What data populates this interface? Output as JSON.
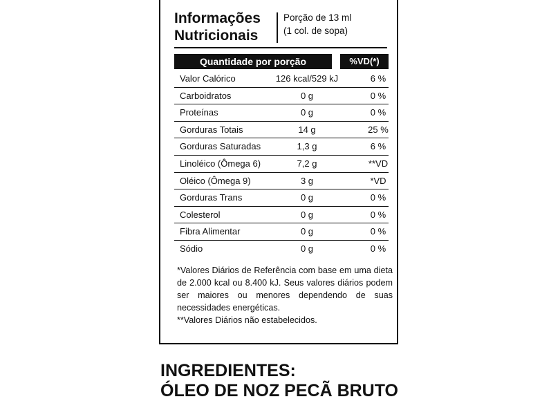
{
  "label": {
    "title_line1": "Informações",
    "title_line2": "Nutricionais",
    "portion_line1": "Porção de 13 ml",
    "portion_line2": "(1 col. de sopa)",
    "header_quantity": "Quantidade por porção",
    "header_vd": "%VD(*)",
    "rows": [
      {
        "name": "Valor Calórico",
        "value": "126 kcal/529 kJ",
        "vd": "6 %"
      },
      {
        "name": "Carboidratos",
        "value": "0 g",
        "vd": "0 %"
      },
      {
        "name": "Proteínas",
        "value": "0 g",
        "vd": "0 %"
      },
      {
        "name": "Gorduras Totais",
        "value": "14 g",
        "vd": "25 %"
      },
      {
        "name": "Gorduras Saturadas",
        "value": "1,3 g",
        "vd": "6 %"
      },
      {
        "name": "Linoléico (Ômega 6)",
        "value": "7,2 g",
        "vd": "**VD"
      },
      {
        "name": "Oléico (Ômega 9)",
        "value": "3 g",
        "vd": "*VD"
      },
      {
        "name": "Gorduras Trans",
        "value": "0 g",
        "vd": "0 %"
      },
      {
        "name": "Colesterol",
        "value": "0 g",
        "vd": "0 %"
      },
      {
        "name": "Fibra Alimentar",
        "value": "0 g",
        "vd": "0 %"
      },
      {
        "name": "Sódio",
        "value": "0 g",
        "vd": "0 %"
      }
    ],
    "footnote1": "*Valores Diários de Referência com base em uma dieta de 2.000 kcal ou 8.400 kJ. Seus valores diários podem ser maiores ou menores dependendo de suas necessidades energéticas.",
    "footnote2": "**Valores Diários não estabelecidos."
  },
  "ingredients": {
    "heading": "INGREDIENTES:",
    "text": "ÓLEO DE NOZ PECÃ BRUTO"
  }
}
